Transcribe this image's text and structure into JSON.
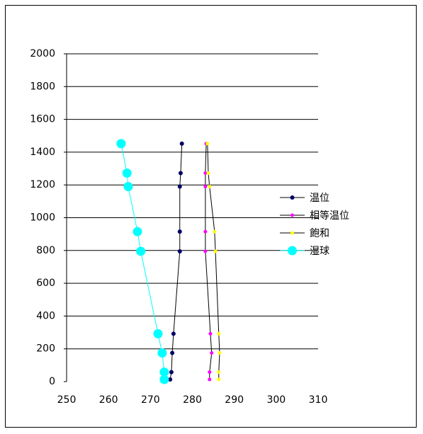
{
  "chart_data": {
    "type": "scatter",
    "xlim": [
      250,
      310
    ],
    "xticks": [
      250,
      260,
      270,
      280,
      290,
      300,
      310
    ],
    "ylim": [
      0,
      2000
    ],
    "yticks": [
      0,
      200,
      400,
      600,
      800,
      1000,
      1200,
      1400,
      1600,
      1800,
      2000
    ],
    "grid": true,
    "legend": "right",
    "series": [
      {
        "name": "温位",
        "color": "#000066",
        "line_color": "#000000",
        "marker_size": 3,
        "x": [
          274.7,
          275.0,
          275.2,
          275.5,
          277.0,
          277.0,
          277.0,
          277.2,
          277.5
        ],
        "values": [
          13,
          58,
          175,
          292,
          795,
          915,
          1190,
          1272,
          1452
        ]
      },
      {
        "name": "相等温位",
        "color": "#ff00ff",
        "line_color": "#000000",
        "marker_size": 2.5,
        "x": [
          284.1,
          284.1,
          284.6,
          284.3,
          283.1,
          283.1,
          283.1,
          283.1,
          283.3
        ],
        "values": [
          13,
          58,
          175,
          292,
          795,
          915,
          1190,
          1272,
          1452
        ]
      },
      {
        "name": "飽和",
        "color": "#ffff00",
        "line_color": "#000000",
        "marker_size": 2.5,
        "x": [
          286.3,
          286.3,
          286.5,
          286.3,
          285.5,
          285.3,
          284.1,
          283.8,
          283.6
        ],
        "values": [
          13,
          58,
          175,
          292,
          795,
          915,
          1190,
          1272,
          1452
        ]
      },
      {
        "name": "湿球",
        "color": "#00ffff",
        "line_color": "#00ffff",
        "marker_size": 6.5,
        "x": [
          273.3,
          273.3,
          272.8,
          271.8,
          267.7,
          266.9,
          264.7,
          264.4,
          263.0
        ],
        "values": [
          13,
          58,
          175,
          292,
          795,
          915,
          1190,
          1272,
          1452
        ]
      }
    ]
  }
}
